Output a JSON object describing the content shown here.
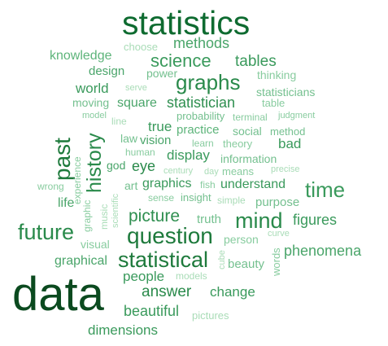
{
  "cloud": {
    "palette": {
      "darkest": "#0b4a1f",
      "dark": "#1e7a3c",
      "mid": "#3a9a5c",
      "light": "#74c08f",
      "lightest": "#a9dcb7"
    },
    "words": [
      {
        "text": "statistics",
        "color": "#0e6b30"
      },
      {
        "text": "data",
        "color": "#0b4a1f"
      },
      {
        "text": "choose",
        "color": "#a9dcb7"
      },
      {
        "text": "methods",
        "color": "#4aa56a"
      },
      {
        "text": "knowledge",
        "color": "#5db47a"
      },
      {
        "text": "science",
        "color": "#3a9a5c"
      },
      {
        "text": "tables",
        "color": "#3a9a5c"
      },
      {
        "text": "design",
        "color": "#4aa56a"
      },
      {
        "text": "power",
        "color": "#74c08f"
      },
      {
        "text": "thinking",
        "color": "#88cc9f"
      },
      {
        "text": "graphs",
        "color": "#2a8a4b"
      },
      {
        "text": "world",
        "color": "#3a9a5c"
      },
      {
        "text": "serve",
        "color": "#a9dcb7"
      },
      {
        "text": "statisticians",
        "color": "#74c08f"
      },
      {
        "text": "moving",
        "color": "#74c08f"
      },
      {
        "text": "square",
        "color": "#4aa56a"
      },
      {
        "text": "statistician",
        "color": "#2f8f50"
      },
      {
        "text": "table",
        "color": "#88cc9f"
      },
      {
        "text": "model",
        "color": "#88cc9f"
      },
      {
        "text": "line",
        "color": "#a9dcb7"
      },
      {
        "text": "probability",
        "color": "#74c08f"
      },
      {
        "text": "terminal",
        "color": "#88cc9f"
      },
      {
        "text": "judgment",
        "color": "#88cc9f"
      },
      {
        "text": "past",
        "color": "#1e7a3c"
      },
      {
        "text": "history",
        "color": "#2a8a4b"
      },
      {
        "text": "true",
        "color": "#3a9a5c"
      },
      {
        "text": "practice",
        "color": "#5db47a"
      },
      {
        "text": "social",
        "color": "#74c08f"
      },
      {
        "text": "method",
        "color": "#74c08f"
      },
      {
        "text": "law",
        "color": "#74c08f"
      },
      {
        "text": "vision",
        "color": "#4aa56a"
      },
      {
        "text": "learn",
        "color": "#88cc9f"
      },
      {
        "text": "theory",
        "color": "#88cc9f"
      },
      {
        "text": "bad",
        "color": "#3a9a5c"
      },
      {
        "text": "human",
        "color": "#88cc9f"
      },
      {
        "text": "display",
        "color": "#3a9a5c"
      },
      {
        "text": "information",
        "color": "#74c08f"
      },
      {
        "text": "experience",
        "color": "#88cc9f"
      },
      {
        "text": "god",
        "color": "#4aa56a"
      },
      {
        "text": "eye",
        "color": "#2a8a4b"
      },
      {
        "text": "century",
        "color": "#a9dcb7"
      },
      {
        "text": "day",
        "color": "#a9dcb7"
      },
      {
        "text": "means",
        "color": "#88cc9f"
      },
      {
        "text": "precise",
        "color": "#a9dcb7"
      },
      {
        "text": "wrong",
        "color": "#88cc9f"
      },
      {
        "text": "art",
        "color": "#74c08f"
      },
      {
        "text": "graphics",
        "color": "#3a9a5c"
      },
      {
        "text": "fish",
        "color": "#88cc9f"
      },
      {
        "text": "understand",
        "color": "#3a9a5c"
      },
      {
        "text": "time",
        "color": "#3a9a5c"
      },
      {
        "text": "sense",
        "color": "#88cc9f"
      },
      {
        "text": "insight",
        "color": "#74c08f"
      },
      {
        "text": "simple",
        "color": "#a9dcb7"
      },
      {
        "text": "purpose",
        "color": "#74c08f"
      },
      {
        "text": "life",
        "color": "#4aa56a"
      },
      {
        "text": "graphic",
        "color": "#88cc9f"
      },
      {
        "text": "music",
        "color": "#a9dcb7"
      },
      {
        "text": "scientific",
        "color": "#a9dcb7"
      },
      {
        "text": "picture",
        "color": "#2f8f50"
      },
      {
        "text": "truth",
        "color": "#74c08f"
      },
      {
        "text": "mind",
        "color": "#2a8a4b"
      },
      {
        "text": "figures",
        "color": "#3a9a5c"
      },
      {
        "text": "future",
        "color": "#2a8a4b"
      },
      {
        "text": "question",
        "color": "#1e7a3c"
      },
      {
        "text": "person",
        "color": "#88cc9f"
      },
      {
        "text": "curve",
        "color": "#a9dcb7"
      },
      {
        "text": "visual",
        "color": "#88cc9f"
      },
      {
        "text": "words",
        "color": "#88cc9f"
      },
      {
        "text": "phenomena",
        "color": "#4aa56a"
      },
      {
        "text": "graphical",
        "color": "#4aa56a"
      },
      {
        "text": "statistical",
        "color": "#1e7a3c"
      },
      {
        "text": "cube",
        "color": "#a9dcb7"
      },
      {
        "text": "beauty",
        "color": "#74c08f"
      },
      {
        "text": "people",
        "color": "#3a9a5c"
      },
      {
        "text": "models",
        "color": "#a9dcb7"
      },
      {
        "text": "answer",
        "color": "#2a8a4b"
      },
      {
        "text": "change",
        "color": "#3a9a5c"
      },
      {
        "text": "beautiful",
        "color": "#3a9a5c"
      },
      {
        "text": "pictures",
        "color": "#a9dcb7"
      },
      {
        "text": "dimensions",
        "color": "#3a9a5c"
      }
    ]
  }
}
